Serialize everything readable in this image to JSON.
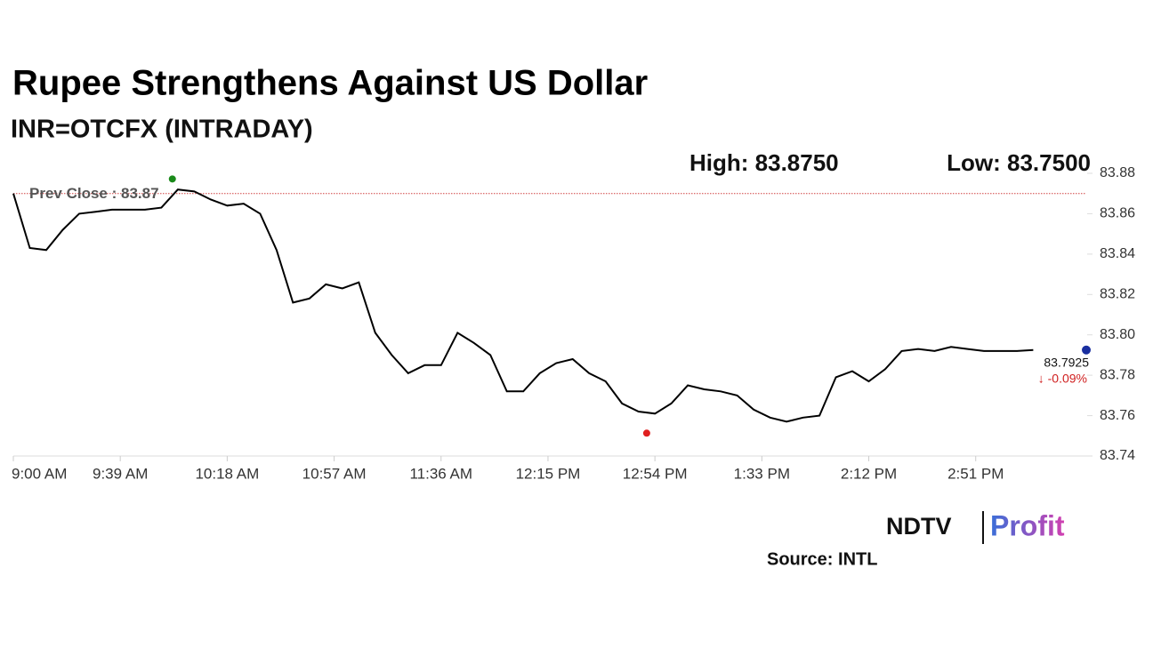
{
  "chart_data": {
    "type": "line",
    "title": "Rupee Strengthens Against US Dollar",
    "subtitle": "INR=OTCFX (INTRADAY)",
    "high": {
      "label": "High: 83.8750",
      "value": 83.875,
      "x": "9:58 AM"
    },
    "low": {
      "label": "Low: 83.7500",
      "value": 83.75,
      "x": "12:51 PM"
    },
    "prev_close": {
      "label": "Prev Close : 83.87",
      "value": 83.87
    },
    "last_value": 83.7925,
    "change": "↓ -0.09%",
    "color": "#000000",
    "x": [
      "9:00 AM",
      "9:06 AM",
      "9:12 AM",
      "9:18 AM",
      "9:24 AM",
      "9:30 AM",
      "9:36 AM",
      "9:42 AM",
      "9:48 AM",
      "9:54 AM",
      "10:00 AM",
      "10:06 AM",
      "10:12 AM",
      "10:18 AM",
      "10:24 AM",
      "10:30 AM",
      "10:36 AM",
      "10:42 AM",
      "10:48 AM",
      "10:54 AM",
      "11:00 AM",
      "11:06 AM",
      "11:12 AM",
      "11:18 AM",
      "11:24 AM",
      "11:30 AM",
      "11:36 AM",
      "11:42 AM",
      "11:48 AM",
      "11:54 AM",
      "12:00 PM",
      "12:06 PM",
      "12:12 PM",
      "12:18 PM",
      "12:24 PM",
      "12:30 PM",
      "12:36 PM",
      "12:42 PM",
      "12:48 PM",
      "12:54 PM",
      "1:00 PM",
      "1:06 PM",
      "1:12 PM",
      "1:18 PM",
      "1:24 PM",
      "1:30 PM",
      "1:36 PM",
      "1:42 PM",
      "1:48 PM",
      "1:54 PM",
      "2:00 PM",
      "2:06 PM",
      "2:12 PM",
      "2:18 PM",
      "2:24 PM",
      "2:30 PM",
      "2:36 PM",
      "2:42 PM",
      "2:48 PM",
      "2:54 PM",
      "3:00 PM",
      "3:06 PM",
      "3:12 PM"
    ],
    "values": [
      83.87,
      83.843,
      83.842,
      83.852,
      83.86,
      83.861,
      83.862,
      83.862,
      83.862,
      83.863,
      83.872,
      83.871,
      83.867,
      83.864,
      83.865,
      83.86,
      83.842,
      83.816,
      83.818,
      83.825,
      83.823,
      83.826,
      83.801,
      83.79,
      83.781,
      83.785,
      83.785,
      83.801,
      83.796,
      83.79,
      83.772,
      83.772,
      83.781,
      83.786,
      83.788,
      83.781,
      83.777,
      83.766,
      83.762,
      83.761,
      83.766,
      83.775,
      83.773,
      83.772,
      83.77,
      83.763,
      83.759,
      83.757,
      83.759,
      83.76,
      83.779,
      83.782,
      83.777,
      83.783,
      83.792,
      83.793,
      83.792,
      83.794,
      83.793,
      83.792,
      83.792,
      83.792,
      83.7925
    ],
    "xlim": [
      "9:00 AM",
      "3:31 PM"
    ],
    "xticks": [
      "9:00 AM",
      "9:39 AM",
      "10:18 AM",
      "10:57 AM",
      "11:36 AM",
      "12:15 PM",
      "12:54 PM",
      "1:33 PM",
      "2:12 PM",
      "2:51 PM"
    ],
    "ylim": [
      83.74,
      83.88
    ],
    "yticks": [
      83.88,
      83.86,
      83.84,
      83.82,
      {
        "value": 83.8,
        "label": "83.80"
      },
      83.78,
      83.76,
      83.74
    ]
  },
  "footer": {
    "logo_left": "NDTV",
    "logo_right": "Profit",
    "source": "Source: INTL"
  }
}
